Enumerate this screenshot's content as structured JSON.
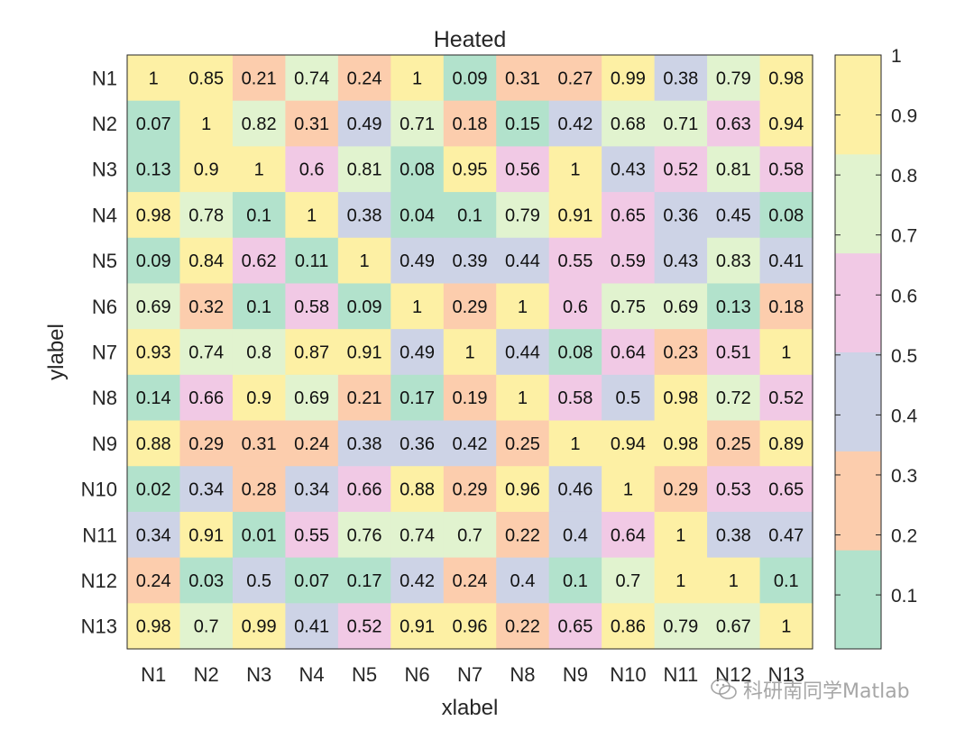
{
  "chart_data": {
    "type": "heatmap",
    "title": "Heated",
    "xlabel": "xlabel",
    "ylabel": "ylabel",
    "xcategories": [
      "N1",
      "N2",
      "N3",
      "N4",
      "N5",
      "N6",
      "N7",
      "N8",
      "N9",
      "N10",
      "N11",
      "N12",
      "N13"
    ],
    "ycategories": [
      "N1",
      "N2",
      "N3",
      "N4",
      "N5",
      "N6",
      "N7",
      "N8",
      "N9",
      "N10",
      "N11",
      "N12",
      "N13"
    ],
    "values": [
      [
        1,
        0.85,
        0.21,
        0.74,
        0.24,
        1,
        0.09,
        0.31,
        0.27,
        0.99,
        0.38,
        0.79,
        0.98
      ],
      [
        0.07,
        1,
        0.82,
        0.31,
        0.49,
        0.71,
        0.18,
        0.15,
        0.42,
        0.68,
        0.71,
        0.63,
        0.94
      ],
      [
        0.13,
        0.9,
        1,
        0.6,
        0.81,
        0.08,
        0.95,
        0.56,
        1,
        0.43,
        0.52,
        0.81,
        0.58
      ],
      [
        0.98,
        0.78,
        0.1,
        1,
        0.38,
        0.04,
        0.1,
        0.79,
        0.91,
        0.65,
        0.36,
        0.45,
        0.08
      ],
      [
        0.09,
        0.84,
        0.62,
        0.11,
        1,
        0.49,
        0.39,
        0.44,
        0.55,
        0.59,
        0.43,
        0.83,
        0.41
      ],
      [
        0.69,
        0.32,
        0.1,
        0.58,
        0.09,
        1,
        0.29,
        1,
        0.6,
        0.75,
        0.69,
        0.13,
        0.18
      ],
      [
        0.93,
        0.74,
        0.8,
        0.87,
        0.91,
        0.49,
        1,
        0.44,
        0.08,
        0.64,
        0.23,
        0.51,
        1
      ],
      [
        0.14,
        0.66,
        0.9,
        0.69,
        0.21,
        0.17,
        0.19,
        1,
        0.58,
        0.5,
        0.98,
        0.72,
        0.52
      ],
      [
        0.88,
        0.29,
        0.31,
        0.24,
        0.38,
        0.36,
        0.42,
        0.25,
        1,
        0.94,
        0.98,
        0.25,
        0.89
      ],
      [
        0.02,
        0.34,
        0.28,
        0.34,
        0.66,
        0.88,
        0.29,
        0.96,
        0.46,
        1,
        0.29,
        0.53,
        0.65
      ],
      [
        0.34,
        0.91,
        0.01,
        0.55,
        0.76,
        0.74,
        0.7,
        0.22,
        0.4,
        0.64,
        1,
        0.38,
        0.47
      ],
      [
        0.24,
        0.03,
        0.5,
        0.07,
        0.17,
        0.42,
        0.24,
        0.4,
        0.1,
        0.7,
        1,
        1,
        0.1
      ],
      [
        0.98,
        0.7,
        0.99,
        0.41,
        0.52,
        0.91,
        0.96,
        0.22,
        0.65,
        0.86,
        0.79,
        0.67,
        1
      ]
    ],
    "colormap": [
      "#b2e2cc",
      "#fccdad",
      "#cdd3e6",
      "#f1c9e5",
      "#e1f3cf",
      "#fdf0a4"
    ],
    "clim": [
      0.01,
      1
    ],
    "colorbar_ticks": [
      0.1,
      0.2,
      0.3,
      0.4,
      0.5,
      0.6,
      0.7,
      0.8,
      0.9,
      1
    ]
  },
  "watermark": {
    "text": "科研南同学Matlab",
    "icon": "wechat-icon"
  }
}
